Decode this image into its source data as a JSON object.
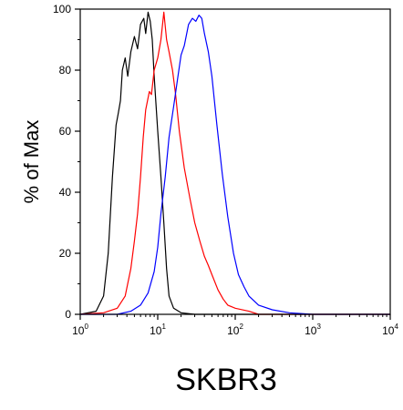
{
  "chart_data": {
    "type": "line",
    "title": "",
    "caption": "SKBR3",
    "xlabel": "",
    "ylabel": "% of Max",
    "xscale": "log",
    "xlim": [
      1,
      10000
    ],
    "ylim": [
      0,
      100
    ],
    "grid": false,
    "y_ticks": [
      "0",
      "20",
      "40",
      "60",
      "80",
      "100"
    ],
    "x_ticks": [
      {
        "base": "10",
        "exp": "0",
        "value": 1
      },
      {
        "base": "10",
        "exp": "1",
        "value": 10
      },
      {
        "base": "10",
        "exp": "2",
        "value": 100
      },
      {
        "base": "10",
        "exp": "3",
        "value": 1000
      },
      {
        "base": "10",
        "exp": "4",
        "value": 10000
      }
    ],
    "series": [
      {
        "color": "#000000",
        "points": [
          [
            1.0,
            0
          ],
          [
            1.6,
            1
          ],
          [
            2.0,
            6
          ],
          [
            2.3,
            20
          ],
          [
            2.6,
            45
          ],
          [
            2.9,
            62
          ],
          [
            3.1,
            66
          ],
          [
            3.3,
            70
          ],
          [
            3.5,
            80
          ],
          [
            3.8,
            84
          ],
          [
            4.1,
            78
          ],
          [
            4.5,
            86
          ],
          [
            5.0,
            91
          ],
          [
            5.5,
            87
          ],
          [
            6.0,
            95
          ],
          [
            6.6,
            97
          ],
          [
            7.0,
            92
          ],
          [
            7.5,
            99
          ],
          [
            8.0,
            96
          ],
          [
            8.5,
            90
          ],
          [
            9.0,
            78
          ],
          [
            10.0,
            60
          ],
          [
            11.0,
            45
          ],
          [
            12.0,
            30
          ],
          [
            13.0,
            15
          ],
          [
            14.0,
            6
          ],
          [
            16.0,
            2
          ],
          [
            20.0,
            0.5
          ],
          [
            30.0,
            0
          ],
          [
            10000,
            0
          ]
        ]
      },
      {
        "color": "#ff0000",
        "points": [
          [
            1.0,
            0
          ],
          [
            2.0,
            0.5
          ],
          [
            3.0,
            2
          ],
          [
            3.8,
            6
          ],
          [
            4.5,
            15
          ],
          [
            5.0,
            24
          ],
          [
            5.5,
            33
          ],
          [
            6.0,
            45
          ],
          [
            6.5,
            58
          ],
          [
            7.0,
            67
          ],
          [
            7.8,
            73
          ],
          [
            8.3,
            72
          ],
          [
            9.0,
            80
          ],
          [
            10.0,
            84
          ],
          [
            11.0,
            90
          ],
          [
            12.0,
            99
          ],
          [
            13.0,
            90
          ],
          [
            14.0,
            86
          ],
          [
            15.5,
            80
          ],
          [
            17.0,
            72
          ],
          [
            19.0,
            60
          ],
          [
            22.0,
            48
          ],
          [
            26.0,
            38
          ],
          [
            30.0,
            30
          ],
          [
            35.0,
            24
          ],
          [
            40.0,
            19
          ],
          [
            45.0,
            16
          ],
          [
            50.0,
            13
          ],
          [
            60.0,
            8
          ],
          [
            70.0,
            5
          ],
          [
            80.0,
            3
          ],
          [
            100.0,
            2
          ],
          [
            150.0,
            1
          ],
          [
            200.0,
            0
          ],
          [
            10000,
            0
          ]
        ]
      },
      {
        "color": "#0000ff",
        "points": [
          [
            1.0,
            0
          ],
          [
            3.0,
            0
          ],
          [
            4.5,
            1
          ],
          [
            6.0,
            3
          ],
          [
            7.5,
            7
          ],
          [
            9.0,
            14
          ],
          [
            10.0,
            22
          ],
          [
            11.0,
            33
          ],
          [
            12.5,
            45
          ],
          [
            14.0,
            58
          ],
          [
            16.0,
            68
          ],
          [
            18.0,
            77
          ],
          [
            20.0,
            85
          ],
          [
            22.0,
            88
          ],
          [
            25.0,
            95
          ],
          [
            28.0,
            97
          ],
          [
            31.0,
            96
          ],
          [
            34.0,
            98
          ],
          [
            37.0,
            97
          ],
          [
            40.0,
            92
          ],
          [
            45.0,
            86
          ],
          [
            50.0,
            78
          ],
          [
            58.0,
            62
          ],
          [
            68.0,
            46
          ],
          [
            80.0,
            32
          ],
          [
            95.0,
            20
          ],
          [
            110.0,
            13
          ],
          [
            130.0,
            9
          ],
          [
            150.0,
            6
          ],
          [
            200.0,
            3
          ],
          [
            300.0,
            1.5
          ],
          [
            500.0,
            0.5
          ],
          [
            1000.0,
            0
          ],
          [
            10000,
            0
          ]
        ]
      }
    ]
  }
}
